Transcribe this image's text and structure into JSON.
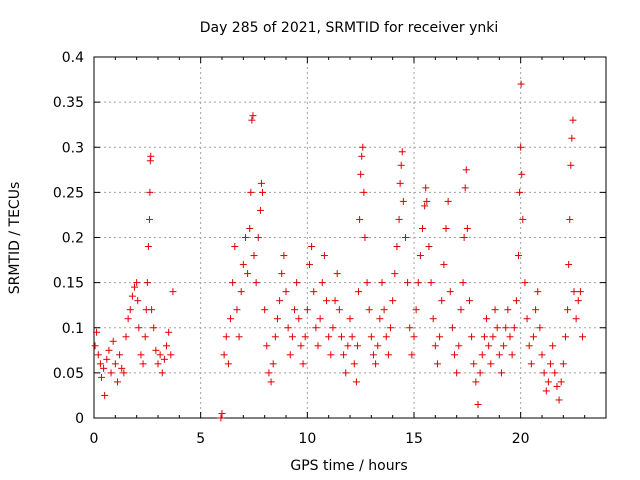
{
  "chart_data": {
    "type": "scatter",
    "title": "Day 285 of 2021, SRMTID for receiver ynki",
    "xlabel": "GPS time / hours",
    "ylabel": "SRMTID / TECUs",
    "xlim": [
      0,
      24
    ],
    "ylim": [
      0,
      0.4
    ],
    "xticks": [
      0,
      5,
      10,
      15,
      20
    ],
    "xtick_labels": [
      "0",
      "5",
      "10",
      "15",
      "20"
    ],
    "yticks": [
      0,
      0.05,
      0.1,
      0.15,
      0.2,
      0.25,
      0.3,
      0.35,
      0.4
    ],
    "ytick_labels": [
      "0",
      "0.05",
      "0.1",
      "0.15",
      "0.2",
      "0.25",
      "0.3",
      "0.35",
      "0.4"
    ],
    "grid": true,
    "marker": "plus",
    "series_color": "#e00000",
    "series": [
      {
        "name": "SRMTID",
        "points": [
          [
            0.05,
            0.08
          ],
          [
            0.12,
            0.095
          ],
          [
            0.2,
            0.07
          ],
          [
            0.3,
            0.06
          ],
          [
            0.35,
            0.045
          ],
          [
            0.45,
            0.055
          ],
          [
            0.5,
            0.025
          ],
          [
            0.6,
            0.065
          ],
          [
            0.7,
            0.075
          ],
          [
            0.8,
            0.05
          ],
          [
            0.9,
            0.085
          ],
          [
            1.0,
            0.06
          ],
          [
            1.1,
            0.04
          ],
          [
            1.2,
            0.07
          ],
          [
            1.3,
            0.055
          ],
          [
            1.4,
            0.05
          ],
          [
            1.5,
            0.09
          ],
          [
            1.6,
            0.11
          ],
          [
            1.7,
            0.12
          ],
          [
            1.8,
            0.135
          ],
          [
            1.9,
            0.145
          ],
          [
            2.0,
            0.15
          ],
          [
            2.05,
            0.13
          ],
          [
            2.1,
            0.1
          ],
          [
            2.2,
            0.07
          ],
          [
            2.3,
            0.06
          ],
          [
            2.4,
            0.09
          ],
          [
            2.45,
            0.12
          ],
          [
            2.5,
            0.15
          ],
          [
            2.55,
            0.19
          ],
          [
            2.6,
            0.22
          ],
          [
            2.62,
            0.25
          ],
          [
            2.64,
            0.285
          ],
          [
            2.66,
            0.29
          ],
          [
            2.7,
            0.12
          ],
          [
            2.8,
            0.1
          ],
          [
            2.9,
            0.075
          ],
          [
            3.0,
            0.06
          ],
          [
            3.1,
            0.07
          ],
          [
            3.2,
            0.05
          ],
          [
            3.3,
            0.065
          ],
          [
            3.4,
            0.08
          ],
          [
            3.5,
            0.095
          ],
          [
            3.6,
            0.07
          ],
          [
            3.7,
            0.14
          ],
          [
            5.95,
            0.0
          ],
          [
            6.0,
            0.005
          ],
          [
            6.1,
            0.07
          ],
          [
            6.2,
            0.09
          ],
          [
            6.3,
            0.06
          ],
          [
            6.4,
            0.11
          ],
          [
            6.5,
            0.15
          ],
          [
            6.6,
            0.19
          ],
          [
            6.7,
            0.12
          ],
          [
            6.8,
            0.09
          ],
          [
            6.9,
            0.14
          ],
          [
            7.0,
            0.17
          ],
          [
            7.1,
            0.2
          ],
          [
            7.2,
            0.16
          ],
          [
            7.3,
            0.21
          ],
          [
            7.35,
            0.25
          ],
          [
            7.4,
            0.33
          ],
          [
            7.45,
            0.335
          ],
          [
            7.5,
            0.18
          ],
          [
            7.6,
            0.15
          ],
          [
            7.7,
            0.2
          ],
          [
            7.8,
            0.23
          ],
          [
            7.85,
            0.26
          ],
          [
            7.9,
            0.25
          ],
          [
            8.0,
            0.12
          ],
          [
            8.1,
            0.08
          ],
          [
            8.2,
            0.05
          ],
          [
            8.3,
            0.04
          ],
          [
            8.4,
            0.06
          ],
          [
            8.5,
            0.09
          ],
          [
            8.6,
            0.11
          ],
          [
            8.7,
            0.13
          ],
          [
            8.8,
            0.16
          ],
          [
            8.9,
            0.18
          ],
          [
            9.0,
            0.14
          ],
          [
            9.1,
            0.1
          ],
          [
            9.2,
            0.07
          ],
          [
            9.3,
            0.09
          ],
          [
            9.4,
            0.12
          ],
          [
            9.5,
            0.15
          ],
          [
            9.6,
            0.11
          ],
          [
            9.7,
            0.08
          ],
          [
            9.8,
            0.06
          ],
          [
            9.9,
            0.09
          ],
          [
            10.0,
            0.12
          ],
          [
            10.1,
            0.17
          ],
          [
            10.2,
            0.19
          ],
          [
            10.3,
            0.14
          ],
          [
            10.4,
            0.1
          ],
          [
            10.5,
            0.08
          ],
          [
            10.6,
            0.11
          ],
          [
            10.7,
            0.15
          ],
          [
            10.8,
            0.18
          ],
          [
            10.9,
            0.13
          ],
          [
            11.0,
            0.09
          ],
          [
            11.1,
            0.07
          ],
          [
            11.2,
            0.1
          ],
          [
            11.3,
            0.13
          ],
          [
            11.4,
            0.16
          ],
          [
            11.5,
            0.12
          ],
          [
            11.6,
            0.09
          ],
          [
            11.7,
            0.07
          ],
          [
            11.8,
            0.05
          ],
          [
            11.9,
            0.08
          ],
          [
            12.0,
            0.11
          ],
          [
            12.1,
            0.09
          ],
          [
            12.2,
            0.06
          ],
          [
            12.3,
            0.04
          ],
          [
            12.35,
            0.08
          ],
          [
            12.4,
            0.14
          ],
          [
            12.45,
            0.22
          ],
          [
            12.5,
            0.27
          ],
          [
            12.55,
            0.29
          ],
          [
            12.6,
            0.3
          ],
          [
            12.65,
            0.25
          ],
          [
            12.7,
            0.2
          ],
          [
            12.8,
            0.15
          ],
          [
            12.9,
            0.12
          ],
          [
            13.0,
            0.09
          ],
          [
            13.1,
            0.07
          ],
          [
            13.2,
            0.06
          ],
          [
            13.3,
            0.08
          ],
          [
            13.4,
            0.11
          ],
          [
            13.5,
            0.15
          ],
          [
            13.6,
            0.12
          ],
          [
            13.7,
            0.09
          ],
          [
            13.8,
            0.07
          ],
          [
            13.9,
            0.1
          ],
          [
            14.0,
            0.13
          ],
          [
            14.1,
            0.16
          ],
          [
            14.2,
            0.19
          ],
          [
            14.3,
            0.22
          ],
          [
            14.35,
            0.26
          ],
          [
            14.4,
            0.28
          ],
          [
            14.45,
            0.295
          ],
          [
            14.5,
            0.24
          ],
          [
            14.6,
            0.2
          ],
          [
            14.7,
            0.15
          ],
          [
            14.8,
            0.1
          ],
          [
            14.9,
            0.07
          ],
          [
            15.0,
            0.09
          ],
          [
            15.1,
            0.12
          ],
          [
            15.2,
            0.15
          ],
          [
            15.3,
            0.18
          ],
          [
            15.4,
            0.21
          ],
          [
            15.5,
            0.235
          ],
          [
            15.55,
            0.255
          ],
          [
            15.6,
            0.24
          ],
          [
            15.7,
            0.19
          ],
          [
            15.8,
            0.15
          ],
          [
            15.9,
            0.11
          ],
          [
            16.0,
            0.08
          ],
          [
            16.1,
            0.06
          ],
          [
            16.2,
            0.09
          ],
          [
            16.3,
            0.13
          ],
          [
            16.4,
            0.17
          ],
          [
            16.5,
            0.21
          ],
          [
            16.6,
            0.24
          ],
          [
            16.7,
            0.14
          ],
          [
            16.8,
            0.1
          ],
          [
            16.9,
            0.07
          ],
          [
            17.0,
            0.05
          ],
          [
            17.1,
            0.08
          ],
          [
            17.2,
            0.12
          ],
          [
            17.3,
            0.15
          ],
          [
            17.35,
            0.2
          ],
          [
            17.4,
            0.255
          ],
          [
            17.45,
            0.275
          ],
          [
            17.5,
            0.21
          ],
          [
            17.6,
            0.13
          ],
          [
            17.7,
            0.09
          ],
          [
            17.8,
            0.06
          ],
          [
            17.9,
            0.04
          ],
          [
            18.0,
            0.015
          ],
          [
            18.1,
            0.05
          ],
          [
            18.2,
            0.07
          ],
          [
            18.3,
            0.09
          ],
          [
            18.4,
            0.11
          ],
          [
            18.5,
            0.08
          ],
          [
            18.6,
            0.06
          ],
          [
            18.7,
            0.09
          ],
          [
            18.8,
            0.12
          ],
          [
            18.9,
            0.1
          ],
          [
            19.0,
            0.07
          ],
          [
            19.1,
            0.05
          ],
          [
            19.2,
            0.08
          ],
          [
            19.3,
            0.1
          ],
          [
            19.4,
            0.12
          ],
          [
            19.5,
            0.09
          ],
          [
            19.6,
            0.07
          ],
          [
            19.7,
            0.1
          ],
          [
            19.8,
            0.13
          ],
          [
            19.9,
            0.18
          ],
          [
            19.95,
            0.25
          ],
          [
            20.0,
            0.3
          ],
          [
            20.02,
            0.37
          ],
          [
            20.05,
            0.27
          ],
          [
            20.1,
            0.22
          ],
          [
            20.2,
            0.15
          ],
          [
            20.3,
            0.11
          ],
          [
            20.4,
            0.08
          ],
          [
            20.5,
            0.06
          ],
          [
            20.6,
            0.09
          ],
          [
            20.7,
            0.12
          ],
          [
            20.8,
            0.14
          ],
          [
            20.9,
            0.1
          ],
          [
            21.0,
            0.07
          ],
          [
            21.1,
            0.05
          ],
          [
            21.2,
            0.03
          ],
          [
            21.3,
            0.04
          ],
          [
            21.4,
            0.06
          ],
          [
            21.5,
            0.08
          ],
          [
            21.6,
            0.05
          ],
          [
            21.7,
            0.035
          ],
          [
            21.8,
            0.02
          ],
          [
            21.9,
            0.04
          ],
          [
            22.0,
            0.06
          ],
          [
            22.1,
            0.09
          ],
          [
            22.2,
            0.12
          ],
          [
            22.25,
            0.17
          ],
          [
            22.3,
            0.22
          ],
          [
            22.35,
            0.28
          ],
          [
            22.4,
            0.31
          ],
          [
            22.45,
            0.33
          ],
          [
            22.5,
            0.14
          ],
          [
            22.6,
            0.11
          ],
          [
            22.7,
            0.13
          ],
          [
            22.8,
            0.14
          ],
          [
            22.9,
            0.09
          ]
        ]
      }
    ]
  }
}
